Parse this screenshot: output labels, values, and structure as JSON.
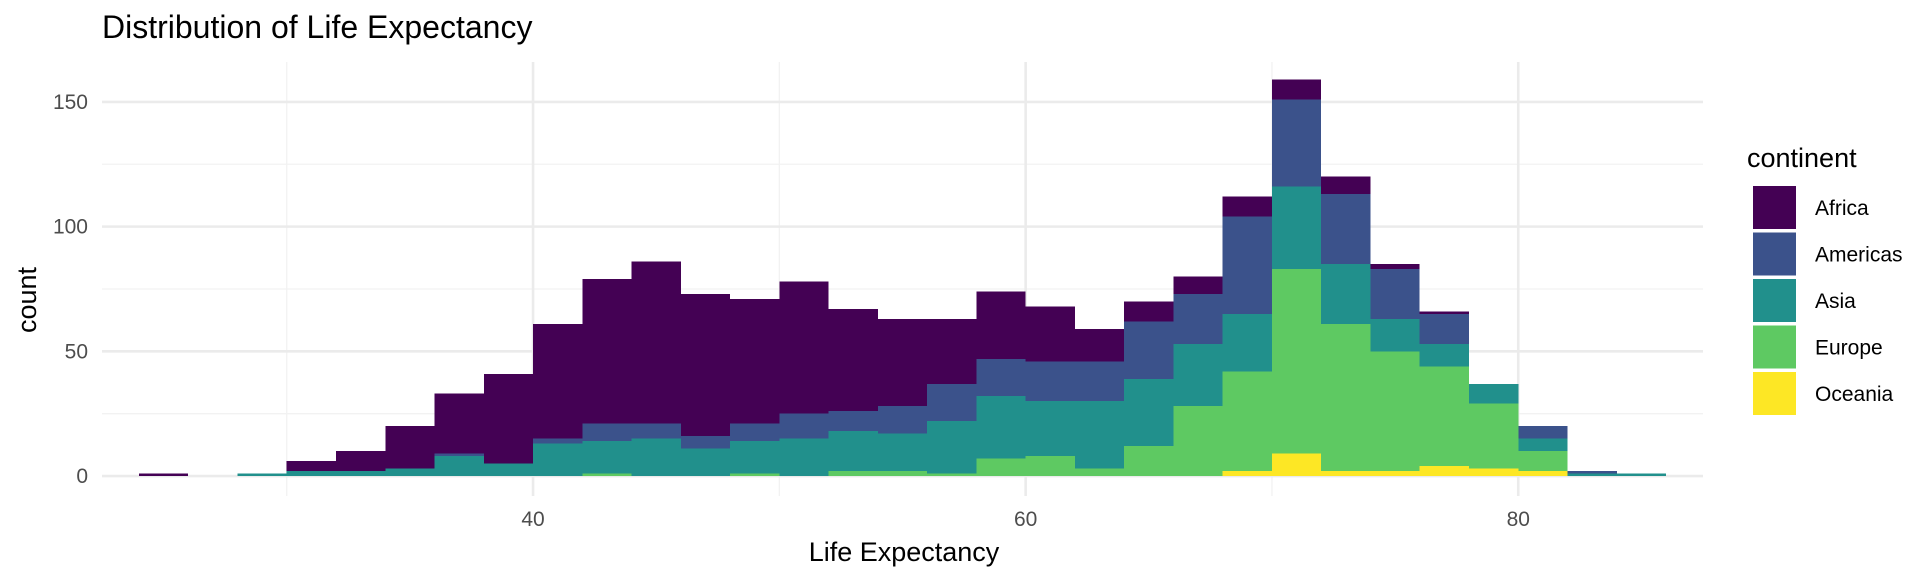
{
  "chart_data": {
    "type": "bar",
    "subtype": "stacked-histogram",
    "title": "Distribution of Life Expectancy",
    "xlabel": "Life Expectancy",
    "ylabel": "count",
    "xlim": [
      22.5,
      87.5
    ],
    "ylim": [
      -8,
      166
    ],
    "x_ticks": [
      40,
      60,
      80
    ],
    "y_ticks": [
      0,
      50,
      100,
      150
    ],
    "bin_width": 2,
    "bin_starts": [
      24,
      26,
      28,
      30,
      32,
      34,
      36,
      38,
      40,
      42,
      44,
      46,
      48,
      50,
      52,
      54,
      56,
      58,
      60,
      62,
      64,
      66,
      68,
      70,
      72,
      74,
      76,
      78,
      80,
      82,
      84
    ],
    "legend": {
      "title": "continent",
      "position": "right"
    },
    "series": [
      {
        "name": "Oceania",
        "color": "#FDE725",
        "values": [
          0,
          0,
          0,
          0,
          0,
          0,
          0,
          0,
          0,
          0,
          0,
          0,
          0,
          0,
          0,
          0,
          0,
          0,
          0,
          0,
          0,
          0,
          2,
          9,
          2,
          2,
          4,
          3,
          2,
          0,
          0
        ]
      },
      {
        "name": "Europe",
        "color": "#5EC962",
        "values": [
          0,
          0,
          0,
          0,
          0,
          0,
          0,
          0,
          0,
          1,
          0,
          0,
          1,
          0,
          2,
          2,
          1,
          7,
          8,
          3,
          12,
          28,
          40,
          74,
          59,
          48,
          40,
          26,
          8,
          0,
          0
        ]
      },
      {
        "name": "Asia",
        "color": "#21908C",
        "values": [
          0,
          0,
          1,
          2,
          2,
          3,
          8,
          5,
          13,
          13,
          15,
          11,
          13,
          15,
          16,
          15,
          21,
          25,
          22,
          27,
          27,
          25,
          23,
          33,
          24,
          13,
          9,
          8,
          5,
          1,
          1
        ]
      },
      {
        "name": "Americas",
        "color": "#3B528B",
        "values": [
          0,
          0,
          0,
          0,
          0,
          0,
          1,
          0,
          2,
          7,
          6,
          5,
          7,
          10,
          8,
          11,
          15,
          15,
          16,
          16,
          23,
          20,
          39,
          35,
          28,
          20,
          12,
          0,
          5,
          1,
          0
        ]
      },
      {
        "name": "Africa",
        "color": "#440154",
        "values": [
          1,
          0,
          0,
          4,
          8,
          17,
          24,
          36,
          46,
          58,
          65,
          57,
          50,
          53,
          41,
          35,
          26,
          27,
          22,
          13,
          8,
          7,
          8,
          8,
          7,
          2,
          1,
          0,
          0,
          0,
          0
        ]
      }
    ],
    "legend_order": [
      "Africa",
      "Americas",
      "Asia",
      "Europe",
      "Oceania"
    ]
  }
}
